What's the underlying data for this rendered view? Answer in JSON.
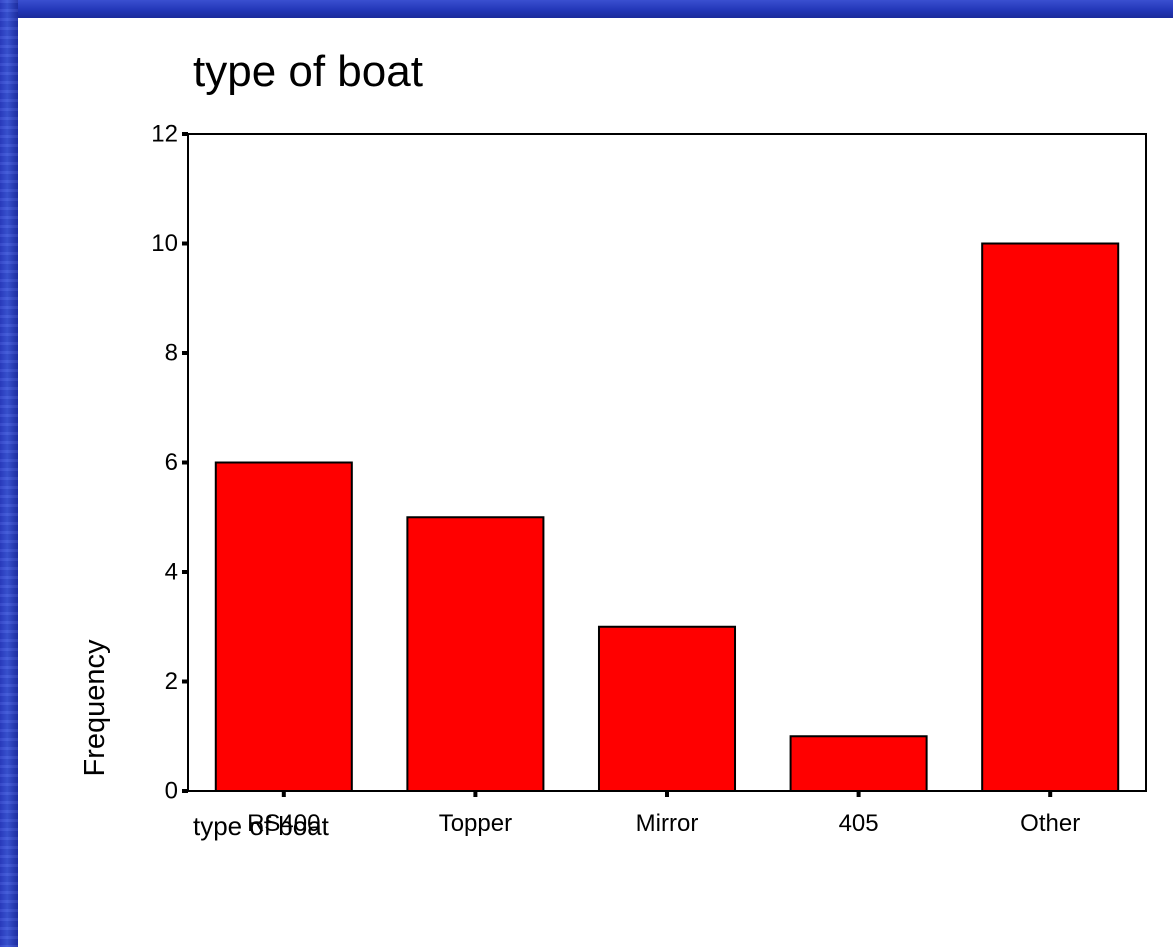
{
  "chart_data": {
    "type": "bar",
    "title": "type of boat",
    "xlabel": "type of boat",
    "ylabel": "Frequency",
    "categories": [
      "RS400",
      "Topper",
      "Mirror",
      "405",
      "Other"
    ],
    "values": [
      6,
      5,
      3,
      1,
      10
    ],
    "ylim": [
      0,
      12
    ],
    "yticks": [
      0,
      2,
      4,
      6,
      8,
      10,
      12
    ],
    "legend": "none",
    "grid": false,
    "colors": {
      "bar_fill": "#ff0000",
      "bar_stroke": "#000000",
      "axis": "#000000",
      "frame": "#2337b8",
      "background": "#ffffff"
    }
  }
}
